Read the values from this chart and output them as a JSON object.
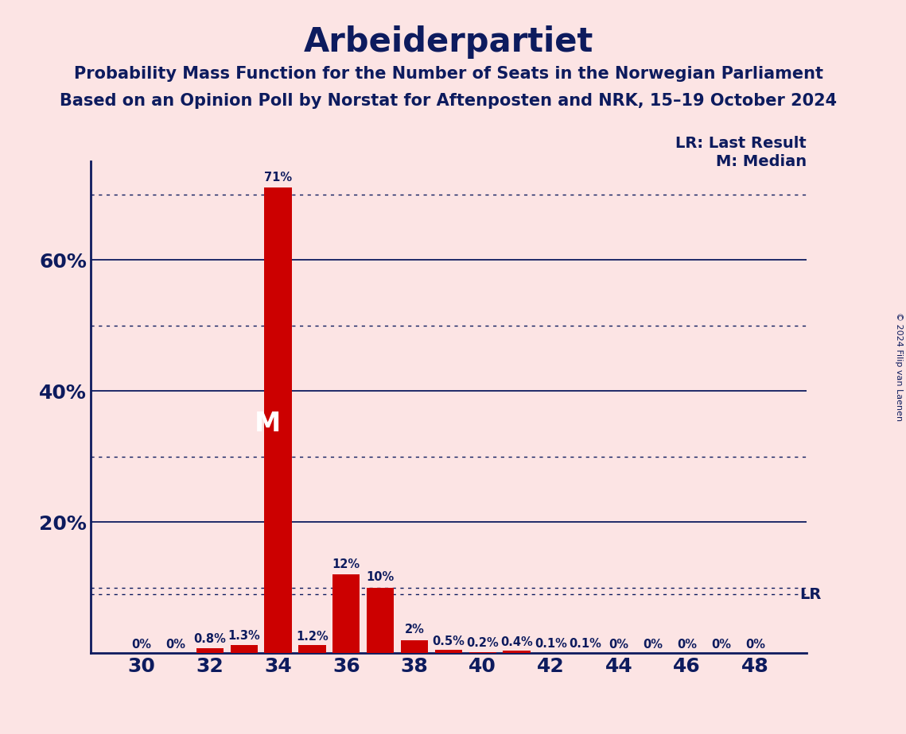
{
  "title": "Arbeiderpartiet",
  "subtitle1": "Probability Mass Function for the Number of Seats in the Norwegian Parliament",
  "subtitle2": "Based on an Opinion Poll by Norstat for Aftenposten and NRK, 15–19 October 2024",
  "copyright": "© 2024 Filip van Laenen",
  "background_color": "#fce4e4",
  "bar_color": "#cc0000",
  "title_color": "#0d1b5e",
  "seats": [
    30,
    31,
    32,
    33,
    34,
    35,
    36,
    37,
    38,
    39,
    40,
    41,
    42,
    43,
    44,
    45,
    46,
    47,
    48
  ],
  "probabilities": [
    0.0,
    0.0,
    0.8,
    1.3,
    71.0,
    1.2,
    12.0,
    10.0,
    2.0,
    0.5,
    0.2,
    0.4,
    0.1,
    0.1,
    0.0,
    0.0,
    0.0,
    0.0,
    0.0
  ],
  "labels": [
    "0%",
    "0%",
    "0.8%",
    "1.3%",
    "71%",
    "1.2%",
    "12%",
    "10%",
    "2%",
    "0.5%",
    "0.2%",
    "0.4%",
    "0.1%",
    "0.1%",
    "0%",
    "0%",
    "0%",
    "0%",
    "0%"
  ],
  "median_seat": 34,
  "lr_value": 9.0,
  "lr_label": "LR",
  "lr_legend": "LR: Last Result",
  "m_legend": "M: Median",
  "ylim": [
    0,
    75
  ],
  "major_yticks": [
    20,
    40,
    60
  ],
  "dotted_yticks": [
    10,
    30,
    50,
    70
  ],
  "xtick_positions": [
    30,
    32,
    34,
    36,
    38,
    40,
    42,
    44,
    46,
    48
  ],
  "title_fontsize": 30,
  "subtitle_fontsize": 15,
  "tick_fontsize": 18,
  "label_fontsize": 10.5,
  "legend_fontsize": 14
}
